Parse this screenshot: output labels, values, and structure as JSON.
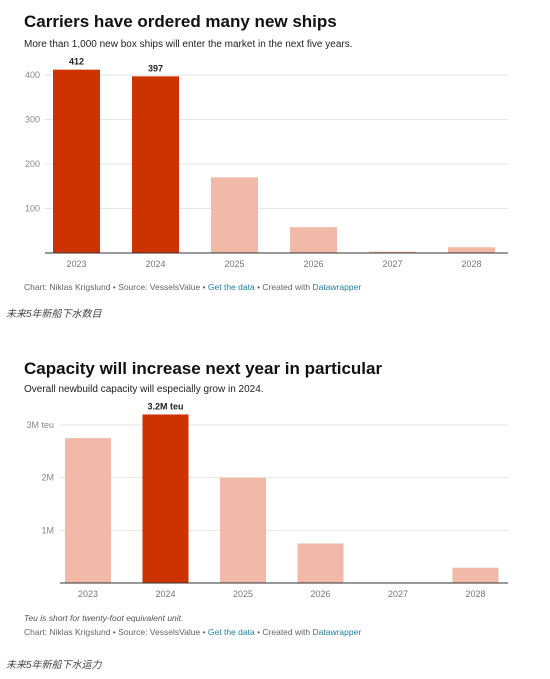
{
  "chart_data": [
    {
      "type": "bar",
      "title": "Carriers have ordered many new ships",
      "subtitle": "More than 1,000 new box ships will enter the market in the next five years.",
      "categories": [
        "2023",
        "2024",
        "2025",
        "2026",
        "2027",
        "2028"
      ],
      "values": [
        412,
        397,
        170,
        58,
        3,
        13
      ],
      "value_labels": [
        "412",
        "397",
        "",
        "",
        "",
        ""
      ],
      "ylim": [
        0,
        400
      ],
      "yticks": [
        100,
        200,
        300,
        400
      ],
      "ytick_labels": [
        "100",
        "200",
        "300",
        "400"
      ],
      "grid": true,
      "colors": [
        "#cc3300",
        "#cc3300",
        "#f0b9a8",
        "#f0b9a8",
        "#f0b9a8",
        "#f0b9a8"
      ],
      "footnote": "",
      "credits": {
        "prefix": "Chart: Niklas Krigslund • Source: VesselsValue • ",
        "link1": "Get the data",
        "mid": " • Created with ",
        "link2": "Datawrapper"
      },
      "caption": "未来5年新船下水数目"
    },
    {
      "type": "bar",
      "title": "Capacity will increase next year in particular",
      "subtitle": "Overall newbuild capacity will especially grow in 2024.",
      "categories": [
        "2023",
        "2024",
        "2025",
        "2026",
        "2027",
        "2028"
      ],
      "values": [
        2750000,
        3200000,
        2000000,
        750000,
        0,
        290000
      ],
      "value_labels": [
        "",
        "3.2M teu",
        "",
        "",
        "",
        ""
      ],
      "ylim": [
        0,
        3000000
      ],
      "yticks": [
        1000000,
        2000000,
        3000000
      ],
      "ytick_labels": [
        "1M",
        "2M",
        "3M teu"
      ],
      "grid": true,
      "colors": [
        "#f0b9a8",
        "#cc3300",
        "#f0b9a8",
        "#f0b9a8",
        "#f0b9a8",
        "#f0b9a8"
      ],
      "footnote": "Teu is short for twenty-foot equivalent unit.",
      "credits": {
        "prefix": "Chart: Niklas Krigslund • Source: VesselsValue • ",
        "link1": "Get the data",
        "mid": " • Created with ",
        "link2": "Datawrapper"
      },
      "caption": "未来5年新船下水运力"
    }
  ]
}
